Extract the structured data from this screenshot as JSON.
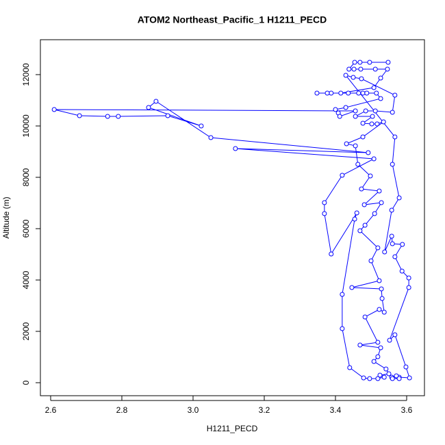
{
  "chart_data": {
    "type": "line",
    "title": "ATOM2 Northeast_Pacific_1 H1211_PECD",
    "xlabel": "H1211_PECD",
    "ylabel": "Altitude (m)",
    "color": "#0000ff",
    "x": [
      3.548,
      3.496,
      3.469,
      3.454,
      3.438,
      3.452,
      3.471,
      3.512,
      3.546,
      3.527,
      3.508,
      3.415,
      3.388,
      3.377,
      3.348,
      3.436,
      3.465,
      3.477,
      3.488,
      3.515,
      3.527,
      3.429,
      3.4,
      3.408,
      3.412,
      3.456,
      2.61,
      2.681,
      2.76,
      2.79,
      2.929,
      3.023,
      2.875,
      2.896,
      3.05,
      3.492,
      3.119,
      3.508,
      3.419,
      3.369,
      3.369,
      3.388,
      3.46,
      3.454,
      3.419,
      3.419,
      3.44,
      3.479,
      3.496,
      3.519,
      3.537,
      3.525,
      3.55,
      3.542,
      3.508,
      3.519,
      3.527,
      3.469,
      3.519,
      3.483,
      3.523,
      3.537,
      3.531,
      3.529,
      3.446,
      3.523,
      3.5,
      3.519,
      3.469,
      3.483,
      3.51,
      3.529,
      3.481,
      3.523,
      3.473,
      3.498,
      3.463,
      3.456,
      3.431,
      3.477,
      3.535,
      3.517,
      3.502,
      3.477,
      3.504,
      3.456,
      3.485,
      3.512,
      3.56,
      3.567,
      3.473,
      3.45,
      3.429,
      3.567,
      3.56,
      3.579,
      3.558,
      3.538,
      3.558,
      3.56,
      3.588,
      3.567,
      3.587,
      3.606,
      3.606,
      3.552,
      3.567,
      3.598,
      3.608,
      3.579,
      3.558,
      3.571,
      3.56,
      3.579
    ],
    "values": [
      12480,
      12480,
      12480,
      12480,
      12213,
      12213,
      12213,
      12213,
      12213,
      11867,
      11493,
      11280,
      11280,
      11280,
      11280,
      11280,
      11280,
      11280,
      11280,
      11280,
      11067,
      10720,
      10640,
      10507,
      10373,
      10587,
      10640,
      10400,
      10373,
      10373,
      10400,
      10000,
      10720,
      10960,
      9547,
      8960,
      9120,
      8720,
      8080,
      7013,
      6587,
      5013,
      6613,
      6373,
      3440,
      2107,
      587,
      187,
      160,
      160,
      213,
      293,
      347,
      533,
      827,
      1013,
      1360,
      1467,
      1573,
      2560,
      2853,
      2747,
      3280,
      3653,
      3707,
      3973,
      4747,
      5253,
      5920,
      6133,
      6587,
      7013,
      6933,
      7467,
      7547,
      8053,
      8507,
      9227,
      9307,
      9573,
      10160,
      10080,
      10080,
      10107,
      10373,
      10373,
      10587,
      10587,
      10533,
      11200,
      11840,
      11893,
      11973,
      9573,
      8507,
      7200,
      6720,
      5093,
      5707,
      5413,
      5387,
      4907,
      4347,
      4080,
      3707,
      1653,
      1867,
      613,
      187,
      213,
      213,
      267,
      160,
      160
    ],
    "xlim": [
      2.5712,
      3.65
    ],
    "ylim": [
      -507,
      13360
    ],
    "xticks": [
      2.6,
      2.8,
      {
        "value": 3,
        "label": "3.0"
      },
      3.2,
      3.4,
      3.6
    ],
    "yticks": [
      0,
      2000,
      4000,
      6000,
      8000,
      10000,
      12000
    ]
  }
}
